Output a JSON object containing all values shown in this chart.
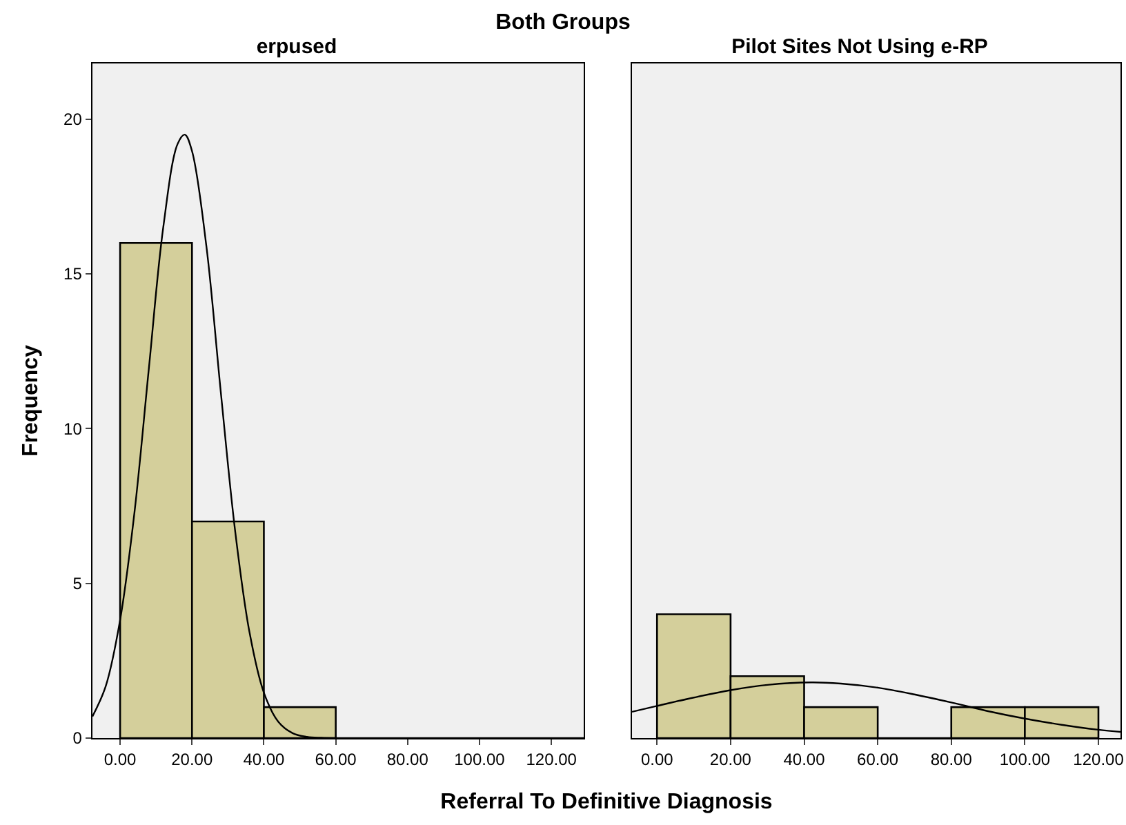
{
  "chart_data": [
    {
      "type": "histogram",
      "title": "erpused",
      "xlabel": "Referral To Definitive Diagnosis",
      "ylabel": "Frequency",
      "annotations": [
        "Both Groups"
      ],
      "bins": [
        0,
        20,
        40,
        60
      ],
      "values": [
        16,
        7,
        1
      ],
      "color": "#d4cf9b",
      "xlim": [
        -7.7,
        129
      ],
      "xticks": [
        {
          "value": 0,
          "label": "0.00"
        },
        {
          "value": 20,
          "label": "20.00"
        },
        {
          "value": 40,
          "label": "40.00"
        },
        {
          "value": 60,
          "label": "60.00"
        },
        {
          "value": 80,
          "label": "80.00"
        },
        {
          "value": 100,
          "label": "100.00"
        },
        {
          "value": 120,
          "label": "120.00"
        }
      ],
      "ylim": [
        0,
        21.8
      ],
      "yticks": [
        0,
        5,
        10,
        15,
        20
      ],
      "grid": false,
      "series": [
        {
          "type": "line",
          "color": "#000000",
          "x": [
            -7.7,
            -4,
            0,
            4,
            8,
            12,
            16,
            18,
            20,
            24,
            28,
            32,
            36,
            40,
            44,
            48,
            52,
            56,
            60,
            80,
            100,
            129
          ],
          "values": [
            0.7,
            1.68,
            3.82,
            7.3,
            11.95,
            16.5,
            19.2,
            19.5,
            18.97,
            15.9,
            11.2,
            6.7,
            3.42,
            1.47,
            0.53,
            0.16,
            0.04,
            0.01,
            0,
            0,
            0,
            0
          ]
        }
      ]
    },
    {
      "type": "histogram",
      "title": "Pilot Sites Not Using e-RP",
      "bins": [
        0,
        20,
        40,
        60,
        80,
        100,
        120
      ],
      "values": [
        4,
        2,
        1,
        0,
        1,
        1
      ],
      "color": "#d4cf9b",
      "xlim": [
        -6.8,
        126
      ],
      "xticks": [
        {
          "value": 0,
          "label": "0.00"
        },
        {
          "value": 20,
          "label": "20.00"
        },
        {
          "value": 40,
          "label": "40.00"
        },
        {
          "value": 60,
          "label": "60.00"
        },
        {
          "value": 80,
          "label": "80.00"
        },
        {
          "value": 100,
          "label": "100.00"
        },
        {
          "value": 120,
          "label": "120.00"
        }
      ],
      "ylim": [
        0,
        21.8
      ],
      "yticks": [
        0,
        5,
        10,
        15,
        20
      ],
      "tick_labels": "x",
      "grid": false,
      "series": [
        {
          "type": "line",
          "color": "#000000",
          "x": [
            -6.8,
            0,
            10,
            20,
            30,
            42,
            50,
            60,
            70,
            80,
            90,
            100,
            110,
            120,
            126
          ],
          "values": [
            0.85,
            1.04,
            1.31,
            1.55,
            1.72,
            1.8,
            1.76,
            1.63,
            1.41,
            1.15,
            0.87,
            0.63,
            0.43,
            0.27,
            0.2
          ]
        }
      ]
    }
  ]
}
